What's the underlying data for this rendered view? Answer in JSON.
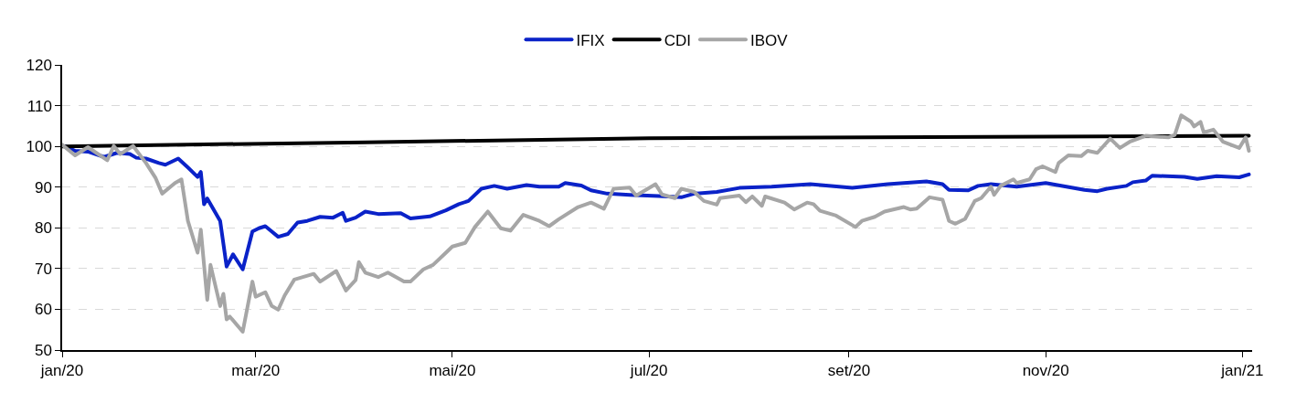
{
  "chart_data": {
    "type": "line",
    "legend": "top",
    "grid": "y",
    "line_style": "solid",
    "marker": "none",
    "xlim": [
      "2020-01-01",
      "2021-01-04"
    ],
    "xticks": [
      {
        "value": "2020-01-01",
        "label": "jan/20"
      },
      {
        "value": "2020-03-01",
        "label": "mar/20"
      },
      {
        "value": "2020-05-01",
        "label": "mai/20"
      },
      {
        "value": "2020-07-01",
        "label": "jul/20"
      },
      {
        "value": "2020-09-01",
        "label": "set/20"
      },
      {
        "value": "2020-11-01",
        "label": "nov/20"
      },
      {
        "value": "2021-01-01",
        "label": "jan/21"
      }
    ],
    "ylim": [
      50,
      120
    ],
    "yticks": [
      50,
      60,
      70,
      80,
      90,
      100,
      110,
      120
    ],
    "series": [
      {
        "name": "IFIX",
        "color": "#0a22c8",
        "x": [
          "2020-01-02",
          "2020-01-05",
          "2020-01-09",
          "2020-01-14",
          "2020-01-18",
          "2020-01-22",
          "2020-01-24",
          "2020-01-27",
          "2020-01-31",
          "2020-02-02",
          "2020-02-06",
          "2020-02-09",
          "2020-02-12",
          "2020-02-13",
          "2020-02-14",
          "2020-02-15",
          "2020-02-19",
          "2020-02-21",
          "2020-02-23",
          "2020-02-26",
          "2020-02-29",
          "2020-03-02",
          "2020-03-04",
          "2020-03-08",
          "2020-03-11",
          "2020-03-14",
          "2020-03-17",
          "2020-03-21",
          "2020-03-25",
          "2020-03-28",
          "2020-03-29",
          "2020-04-01",
          "2020-04-04",
          "2020-04-08",
          "2020-04-15",
          "2020-04-18",
          "2020-04-24",
          "2020-04-29",
          "2020-05-03",
          "2020-05-06",
          "2020-05-10",
          "2020-05-14",
          "2020-05-18",
          "2020-05-24",
          "2020-05-28",
          "2020-06-03",
          "2020-06-05",
          "2020-06-10",
          "2020-06-13",
          "2020-06-18",
          "2020-06-25",
          "2020-07-04",
          "2020-07-11",
          "2020-07-15",
          "2020-07-22",
          "2020-07-29",
          "2020-08-08",
          "2020-08-20",
          "2020-09-02",
          "2020-09-13",
          "2020-09-25",
          "2020-09-30",
          "2020-10-02",
          "2020-10-08",
          "2020-10-11",
          "2020-10-15",
          "2020-10-23",
          "2020-11-01",
          "2020-11-13",
          "2020-11-17",
          "2020-11-20",
          "2020-11-26",
          "2020-11-28",
          "2020-12-02",
          "2020-12-04",
          "2020-12-14",
          "2020-12-18",
          "2020-12-24",
          "2020-12-31",
          "2021-01-03"
        ],
        "values": [
          100.0,
          98.9,
          98.7,
          97.4,
          98.4,
          98.1,
          97.2,
          97.0,
          95.9,
          95.5,
          97.0,
          94.8,
          92.5,
          93.7,
          85.8,
          87.2,
          81.7,
          70.5,
          73.5,
          69.8,
          79.1,
          79.9,
          80.4,
          77.8,
          78.5,
          81.3,
          81.7,
          82.7,
          82.5,
          83.7,
          81.7,
          82.5,
          84.0,
          83.4,
          83.6,
          82.3,
          82.8,
          84.3,
          85.8,
          86.6,
          89.6,
          90.3,
          89.6,
          90.5,
          90.1,
          90.1,
          91.0,
          90.4,
          89.2,
          88.4,
          88.1,
          87.8,
          87.5,
          88.4,
          88.8,
          89.8,
          90.1,
          90.7,
          89.8,
          90.7,
          91.4,
          90.7,
          89.3,
          89.2,
          90.3,
          90.7,
          90.1,
          91.0,
          89.3,
          89.0,
          89.6,
          90.3,
          91.2,
          91.6,
          92.8,
          92.5,
          92.0,
          92.7,
          92.4,
          93.1
        ]
      },
      {
        "name": "CDI",
        "color": "#000000",
        "x": [
          "2020-01-01",
          "2020-04-04",
          "2020-07-01",
          "2021-01-03"
        ],
        "values": [
          100.0,
          101.0,
          102.0,
          102.6
        ]
      },
      {
        "name": "IBOV",
        "color": "#a6a6a6",
        "x": [
          "2020-01-01",
          "2020-01-05",
          "2020-01-09",
          "2020-01-15",
          "2020-01-17",
          "2020-01-19",
          "2020-01-23",
          "2020-01-27",
          "2020-01-30",
          "2020-02-01",
          "2020-02-05",
          "2020-02-07",
          "2020-02-09",
          "2020-02-12",
          "2020-02-13",
          "2020-02-15",
          "2020-02-16",
          "2020-02-19",
          "2020-02-20",
          "2020-02-21",
          "2020-02-22",
          "2020-02-26",
          "2020-02-29",
          "2020-03-01",
          "2020-03-04",
          "2020-03-06",
          "2020-03-08",
          "2020-03-10",
          "2020-03-13",
          "2020-03-19",
          "2020-03-21",
          "2020-03-26",
          "2020-03-29",
          "2020-04-01",
          "2020-04-02",
          "2020-04-04",
          "2020-04-08",
          "2020-04-11",
          "2020-04-16",
          "2020-04-18",
          "2020-04-22",
          "2020-04-25",
          "2020-04-29",
          "2020-05-01",
          "2020-05-05",
          "2020-05-08",
          "2020-05-12",
          "2020-05-16",
          "2020-05-19",
          "2020-05-23",
          "2020-05-28",
          "2020-05-31",
          "2020-06-03",
          "2020-06-09",
          "2020-06-13",
          "2020-06-17",
          "2020-06-20",
          "2020-06-25",
          "2020-06-27",
          "2020-07-03",
          "2020-07-05",
          "2020-07-09",
          "2020-07-11",
          "2020-07-15",
          "2020-07-18",
          "2020-07-22",
          "2020-07-23",
          "2020-07-29",
          "2020-07-31",
          "2020-08-02",
          "2020-08-05",
          "2020-08-06",
          "2020-08-12",
          "2020-08-15",
          "2020-08-19",
          "2020-08-21",
          "2020-08-23",
          "2020-08-28",
          "2020-09-03",
          "2020-09-05",
          "2020-09-09",
          "2020-09-12",
          "2020-09-18",
          "2020-09-20",
          "2020-09-22",
          "2020-09-26",
          "2020-09-30",
          "2020-10-02",
          "2020-10-04",
          "2020-10-07",
          "2020-10-10",
          "2020-10-12",
          "2020-10-15",
          "2020-10-16",
          "2020-10-18",
          "2020-10-22",
          "2020-10-23",
          "2020-10-27",
          "2020-10-29",
          "2020-10-31",
          "2020-11-04",
          "2020-11-05",
          "2020-11-08",
          "2020-11-12",
          "2020-11-14",
          "2020-11-17",
          "2020-11-21",
          "2020-11-24",
          "2020-11-27",
          "2020-12-02",
          "2020-12-09",
          "2020-12-11",
          "2020-12-13",
          "2020-12-16",
          "2020-12-17",
          "2020-12-19",
          "2020-12-20",
          "2020-12-23",
          "2020-12-26",
          "2020-12-31",
          "2021-01-02",
          "2021-01-03"
        ],
        "values": [
          100.4,
          97.8,
          99.8,
          96.6,
          100.1,
          98.1,
          100.1,
          95.9,
          92.2,
          88.4,
          91.0,
          91.9,
          81.7,
          73.9,
          79.5,
          62.3,
          70.9,
          60.8,
          63.8,
          57.5,
          58.2,
          54.5,
          66.8,
          63.1,
          64.2,
          60.8,
          59.9,
          63.4,
          67.3,
          68.7,
          66.8,
          69.4,
          64.6,
          67.2,
          71.6,
          69.0,
          67.9,
          69.0,
          66.8,
          66.8,
          69.8,
          70.9,
          73.9,
          75.4,
          76.3,
          80.2,
          84.0,
          79.9,
          79.3,
          83.2,
          81.7,
          80.4,
          82.1,
          85.1,
          86.2,
          84.7,
          89.6,
          89.9,
          87.9,
          90.7,
          88.2,
          87.3,
          89.6,
          88.8,
          86.6,
          85.7,
          87.3,
          87.9,
          86.3,
          87.7,
          85.4,
          87.7,
          86.2,
          84.5,
          86.2,
          85.8,
          84.2,
          83.0,
          80.2,
          81.7,
          82.7,
          84.0,
          85.1,
          84.5,
          84.7,
          87.5,
          86.9,
          81.7,
          81.0,
          82.2,
          86.6,
          87.3,
          90.1,
          88.1,
          90.3,
          91.9,
          91.0,
          91.9,
          94.4,
          95.1,
          93.7,
          95.9,
          97.8,
          97.6,
          98.9,
          98.4,
          101.9,
          99.6,
          101.1,
          102.6,
          102.2,
          102.8,
          107.6,
          106.1,
          104.9,
          106.0,
          103.4,
          104.1,
          101.1,
          99.6,
          102.2,
          98.9
        ]
      }
    ]
  }
}
